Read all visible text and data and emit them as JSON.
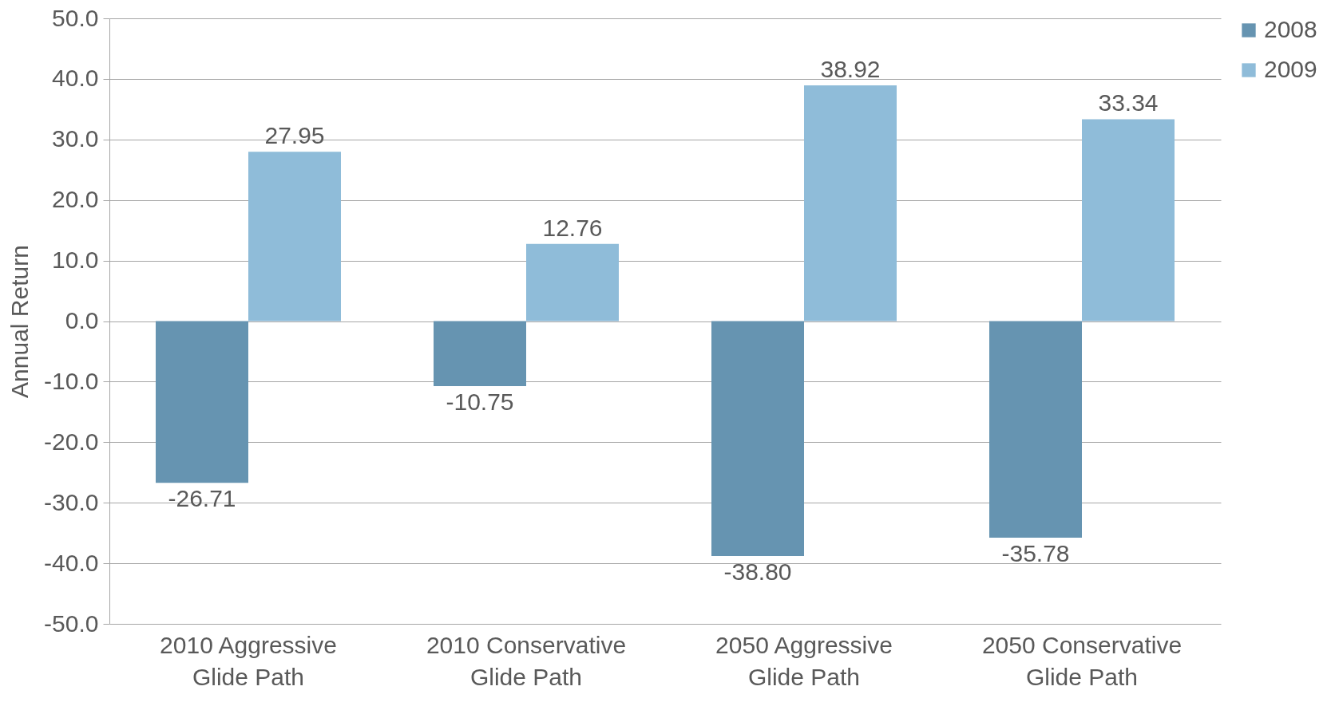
{
  "chart_data": {
    "type": "bar",
    "ylabel": "Annual Return",
    "categories": [
      "2010 Aggressive Glide Path",
      "2010 Conservative Glide Path",
      "2050 Aggressive Glide Path",
      "2050 Conservative Glide Path"
    ],
    "series": [
      {
        "name": "2008",
        "color": "#6694b1",
        "values": [
          -26.71,
          -10.75,
          -38.8,
          -35.78
        ],
        "value_labels": [
          "-26.71",
          "-10.75",
          "-38.80",
          "-35.78"
        ]
      },
      {
        "name": "2009",
        "color": "#8fbcd9",
        "values": [
          27.95,
          12.76,
          38.92,
          33.34
        ],
        "value_labels": [
          "27.95",
          "12.76",
          "38.92",
          "33.34"
        ]
      }
    ],
    "ylim": [
      -50,
      50
    ],
    "yticks": [
      {
        "value": -50,
        "label": "-50.0"
      },
      {
        "value": -40,
        "label": "-40.0"
      },
      {
        "value": -30,
        "label": "-30.0"
      },
      {
        "value": -20,
        "label": "-20.0"
      },
      {
        "value": -10,
        "label": "-10.0"
      },
      {
        "value": 0,
        "label": "0.0"
      },
      {
        "value": 10,
        "label": "10.0"
      },
      {
        "value": 20,
        "label": "20.0"
      },
      {
        "value": 30,
        "label": "30.0"
      },
      {
        "value": 40,
        "label": "40.0"
      },
      {
        "value": 50,
        "label": "50.0"
      }
    ],
    "grid": "y",
    "legend": "right"
  }
}
